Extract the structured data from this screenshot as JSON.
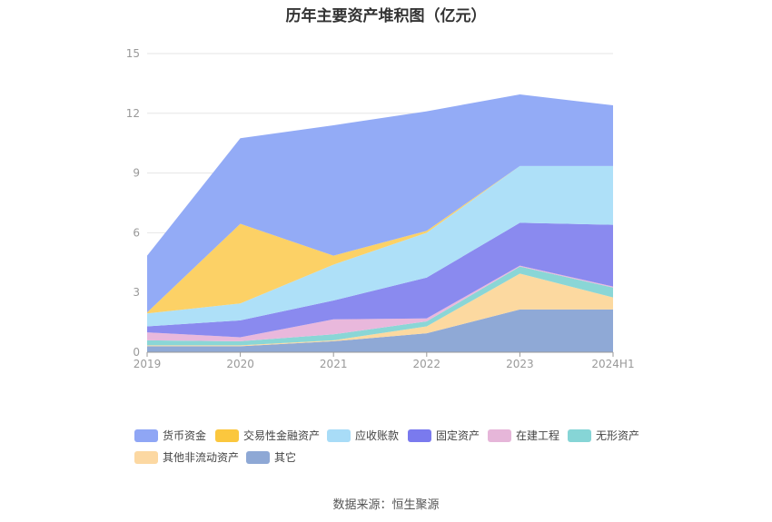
{
  "title": "历年主要资产堆积图（亿元）",
  "source": "数据来源：恒生聚源",
  "chart_data": {
    "type": "area",
    "stacked": true,
    "categories": [
      "2019",
      "2020",
      "2021",
      "2022",
      "2023",
      "2024H1"
    ],
    "ylim": [
      0,
      15
    ],
    "yticks": [
      0,
      3,
      6,
      9,
      12,
      15
    ],
    "grid": true,
    "legend_position": "bottom",
    "series": [
      {
        "name": "其它",
        "color": "#8fa9d6",
        "values": [
          0.3,
          0.3,
          0.55,
          0.95,
          2.15,
          2.15
        ]
      },
      {
        "name": "其他非流动资产",
        "color": "#fcd9a0",
        "values": [
          0.05,
          0.05,
          0.05,
          0.35,
          1.8,
          0.6
        ]
      },
      {
        "name": "无形资产",
        "color": "#8ad6d6",
        "values": [
          0.25,
          0.2,
          0.3,
          0.25,
          0.35,
          0.5
        ]
      },
      {
        "name": "在建工程",
        "color": "#e9b8dc",
        "values": [
          0.4,
          0.2,
          0.75,
          0.15,
          0.05,
          0.05
        ]
      },
      {
        "name": "固定资产",
        "color": "#8a8aef",
        "values": [
          0.3,
          0.85,
          0.95,
          2.05,
          2.15,
          3.1
        ]
      },
      {
        "name": "应收账款",
        "color": "#aee0f8",
        "values": [
          0.65,
          0.85,
          1.8,
          2.25,
          2.85,
          2.95
        ]
      },
      {
        "name": "交易性金融资产",
        "color": "#fcd166",
        "values": [
          0.05,
          4.0,
          0.45,
          0.1,
          0.0,
          0.0
        ]
      },
      {
        "name": "货币资金",
        "color": "#93abf6",
        "values": [
          2.85,
          4.3,
          6.55,
          6.0,
          3.6,
          3.05
        ]
      }
    ]
  },
  "legend": [
    {
      "label": "货币资金",
      "color": "#8fa6f5"
    },
    {
      "label": "交易性金融资产",
      "color": "#fbc73e"
    },
    {
      "label": "应收账款",
      "color": "#a8dcf7"
    },
    {
      "label": "固定资产",
      "color": "#7a7aee"
    },
    {
      "label": "在建工程",
      "color": "#e6b6d9"
    },
    {
      "label": "无形资产",
      "color": "#86d5d6"
    },
    {
      "label": "其他非流动资产",
      "color": "#fcd8a2"
    },
    {
      "label": "其它",
      "color": "#8ea8d5"
    }
  ]
}
